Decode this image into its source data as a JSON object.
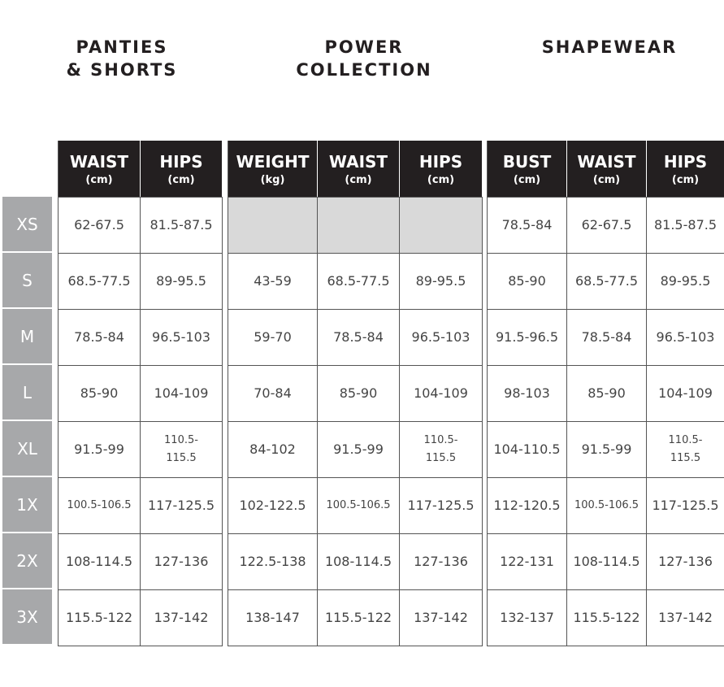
{
  "sizes": [
    "XS",
    "S",
    "M",
    "L",
    "XL",
    "1X",
    "2X",
    "3X"
  ],
  "colors": {
    "header_bg": "#231f20",
    "size_bg": "#a7a8aa",
    "empty_cell": "#d9d9d9"
  },
  "groups": [
    {
      "title": "PANTIES\n& SHORTS",
      "columns": [
        {
          "label": "WAIST",
          "unit": "(cm)"
        },
        {
          "label": "HIPS",
          "unit": "(cm)"
        }
      ],
      "rows": [
        [
          "62-67.5",
          "81.5-87.5"
        ],
        [
          "68.5-77.5",
          "89-95.5"
        ],
        [
          "78.5-84",
          "96.5-103"
        ],
        [
          "85-90",
          "104-109"
        ],
        [
          "91.5-99",
          "110.5-\n115.5"
        ],
        [
          "100.5-106.5",
          "117-125.5"
        ],
        [
          "108-114.5",
          "127-136"
        ],
        [
          "115.5-122",
          "137-142"
        ]
      ]
    },
    {
      "title": "POWER\nCOLLECTION",
      "columns": [
        {
          "label": "WEIGHT",
          "unit": "(kg)"
        },
        {
          "label": "WAIST",
          "unit": "(cm)"
        },
        {
          "label": "HIPS",
          "unit": "(cm)"
        }
      ],
      "rows": [
        [
          null,
          null,
          null
        ],
        [
          "43-59",
          "68.5-77.5",
          "89-95.5"
        ],
        [
          "59-70",
          "78.5-84",
          "96.5-103"
        ],
        [
          "70-84",
          "85-90",
          "104-109"
        ],
        [
          "84-102",
          "91.5-99",
          "110.5-\n115.5"
        ],
        [
          "102-122.5",
          "100.5-106.5",
          "117-125.5"
        ],
        [
          "122.5-138",
          "108-114.5",
          "127-136"
        ],
        [
          "138-147",
          "115.5-122",
          "137-142"
        ]
      ]
    },
    {
      "title": "SHAPEWEAR",
      "columns": [
        {
          "label": "BUST",
          "unit": "(cm)"
        },
        {
          "label": "WAIST",
          "unit": "(cm)"
        },
        {
          "label": "HIPS",
          "unit": "(cm)"
        }
      ],
      "rows": [
        [
          "78.5-84",
          "62-67.5",
          "81.5-87.5"
        ],
        [
          "85-90",
          "68.5-77.5",
          "89-95.5"
        ],
        [
          "91.5-96.5",
          "78.5-84",
          "96.5-103"
        ],
        [
          "98-103",
          "85-90",
          "104-109"
        ],
        [
          "104-110.5",
          "91.5-99",
          "110.5-\n115.5"
        ],
        [
          "112-120.5",
          "100.5-106.5",
          "117-125.5"
        ],
        [
          "122-131",
          "108-114.5",
          "127-136"
        ],
        [
          "132-137",
          "115.5-122",
          "137-142"
        ]
      ]
    }
  ]
}
